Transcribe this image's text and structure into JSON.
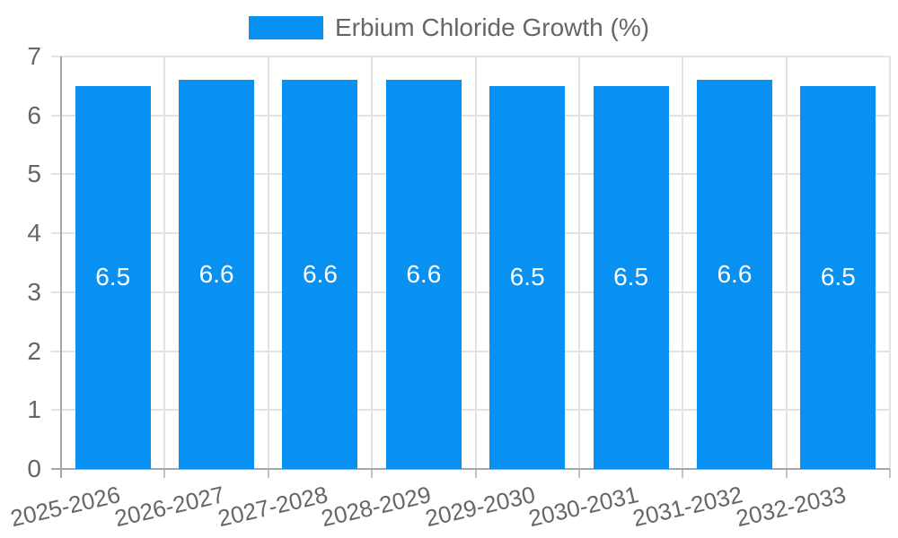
{
  "chart_data": {
    "type": "bar",
    "title": "Erbium Chloride Growth (%)",
    "categories": [
      "2025-2026",
      "2026-2027",
      "2027-2028",
      "2028-2029",
      "2029-2030",
      "2030-2031",
      "2031-2032",
      "2032-2033"
    ],
    "values": [
      6.5,
      6.6,
      6.6,
      6.6,
      6.5,
      6.5,
      6.6,
      6.5
    ],
    "bar_labels": [
      "6.5",
      "6.6",
      "6.6",
      "6.6",
      "6.5",
      "6.5",
      "6.6",
      "6.5"
    ],
    "xlabel": "",
    "ylabel": "",
    "ylim": [
      0,
      7
    ],
    "yticks": [
      0,
      1,
      2,
      3,
      4,
      5,
      6,
      7
    ],
    "grid": true,
    "legend_position": "top",
    "colors": {
      "bar": "#0991f2",
      "grid": "#e3e3e3",
      "axis": "#a6a6a6",
      "x_tick": "#c2c2c2",
      "tick_text": "#666666",
      "bar_label_text": "#ffffff",
      "legend_text": "#666666",
      "background": "#ffffff"
    }
  }
}
